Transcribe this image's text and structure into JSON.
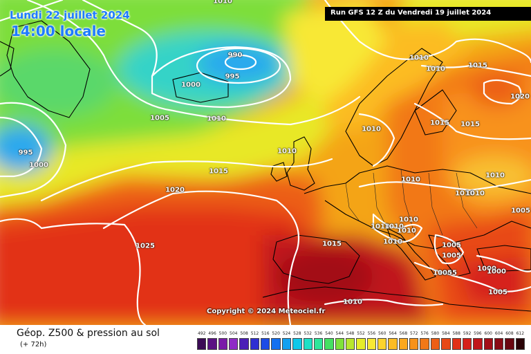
{
  "header": {
    "valid_date": "Lundi 22 juillet 2024",
    "valid_time": "14:00 locale",
    "run_info": "Run GFS 12 Z du Vendredi 19 juillet 2024"
  },
  "map": {
    "copyright": "Copyright © 2024 Meteociel.fr",
    "isobar_labels": [
      {
        "text": "1010"
      },
      {
        "text": "990"
      },
      {
        "text": "995"
      },
      {
        "text": "1000"
      },
      {
        "text": "1005"
      },
      {
        "text": "1010"
      },
      {
        "text": "995"
      },
      {
        "text": "1000"
      },
      {
        "text": "1010"
      },
      {
        "text": "1015"
      },
      {
        "text": "1020"
      },
      {
        "text": "1025"
      },
      {
        "text": "1010"
      },
      {
        "text": "1010"
      },
      {
        "text": "1015"
      },
      {
        "text": "1020"
      },
      {
        "text": "1010"
      },
      {
        "text": "1015"
      },
      {
        "text": "1015"
      },
      {
        "text": "1010"
      },
      {
        "text": "1010"
      },
      {
        "text": "1010"
      },
      {
        "text": "1010"
      },
      {
        "text": "1005"
      },
      {
        "text": "1010"
      },
      {
        "text": "1010"
      },
      {
        "text": "1010"
      },
      {
        "text": "1010"
      },
      {
        "text": "1015"
      },
      {
        "text": "1010"
      },
      {
        "text": "1005"
      },
      {
        "text": "1005"
      },
      {
        "text": "1000"
      },
      {
        "text": "1005"
      },
      {
        "text": "1005"
      },
      {
        "text": "1000"
      },
      {
        "text": "1010"
      },
      {
        "text": "1005"
      }
    ]
  },
  "footer": {
    "title": "Géop. Z500 & pression au sol",
    "lead": "(+ 72h)"
  },
  "legend": {
    "labels": [
      "492",
      "496",
      "500",
      "504",
      "508",
      "512",
      "516",
      "520",
      "524",
      "528",
      "532",
      "536",
      "540",
      "544",
      "548",
      "552",
      "556",
      "560",
      "564",
      "568",
      "572",
      "576",
      "580",
      "584",
      "588",
      "592",
      "596",
      "600",
      "604",
      "608",
      "612"
    ],
    "colors": [
      "#3b0b55",
      "#5a1283",
      "#7a1aa8",
      "#8f2bc6",
      "#4b1eb7",
      "#2f2fd2",
      "#1d4be6",
      "#1470f0",
      "#12a0f0",
      "#10c8e8",
      "#1ee0c6",
      "#2ee69a",
      "#45e062",
      "#7fe23a",
      "#b8e62e",
      "#e6ec2a",
      "#f8e836",
      "#fcd42e",
      "#fcbc24",
      "#fca81e",
      "#f8921a",
      "#f27818",
      "#ec5e16",
      "#e84816",
      "#e23018",
      "#d6201a",
      "#c0161a",
      "#a30f17",
      "#8a0b14",
      "#6a0710",
      "#2a0206"
    ]
  }
}
